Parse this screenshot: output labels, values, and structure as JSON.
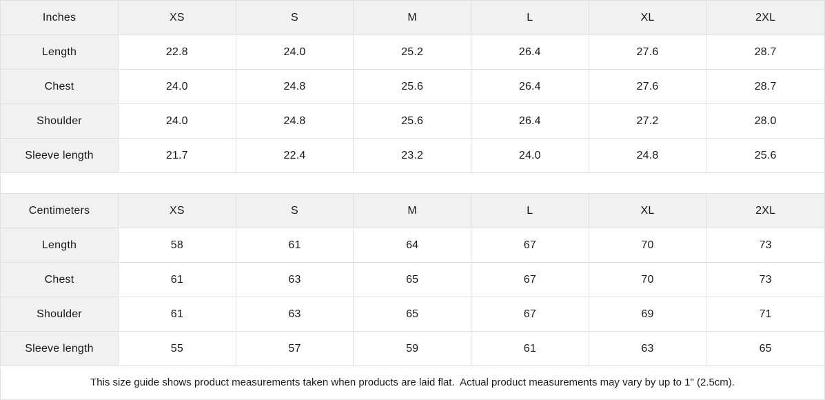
{
  "colors": {
    "header_background": "#f1f1f1",
    "border": "#e0e0e0",
    "text": "#1a1a1a",
    "background": "#ffffff"
  },
  "sizes": [
    "XS",
    "S",
    "M",
    "L",
    "XL",
    "2XL"
  ],
  "tables": [
    {
      "unit_label": "Inches",
      "rows": [
        {
          "label": "Length",
          "values": [
            "22.8",
            "24.0",
            "25.2",
            "26.4",
            "27.6",
            "28.7"
          ]
        },
        {
          "label": "Chest",
          "values": [
            "24.0",
            "24.8",
            "25.6",
            "26.4",
            "27.6",
            "28.7"
          ]
        },
        {
          "label": "Shoulder",
          "values": [
            "24.0",
            "24.8",
            "25.6",
            "26.4",
            "27.2",
            "28.0"
          ]
        },
        {
          "label": "Sleeve length",
          "values": [
            "21.7",
            "22.4",
            "23.2",
            "24.0",
            "24.8",
            "25.6"
          ]
        }
      ]
    },
    {
      "unit_label": "Centimeters",
      "rows": [
        {
          "label": "Length",
          "values": [
            "58",
            "61",
            "64",
            "67",
            "70",
            "73"
          ]
        },
        {
          "label": "Chest",
          "values": [
            "61",
            "63",
            "65",
            "67",
            "70",
            "73"
          ]
        },
        {
          "label": "Shoulder",
          "values": [
            "61",
            "63",
            "65",
            "67",
            "69",
            "71"
          ]
        },
        {
          "label": "Sleeve length",
          "values": [
            "55",
            "57",
            "59",
            "61",
            "63",
            "65"
          ]
        }
      ]
    }
  ],
  "footnote": "This size guide shows product measurements taken when products are laid flat.  Actual product measurements may vary by up to 1\" (2.5cm)."
}
